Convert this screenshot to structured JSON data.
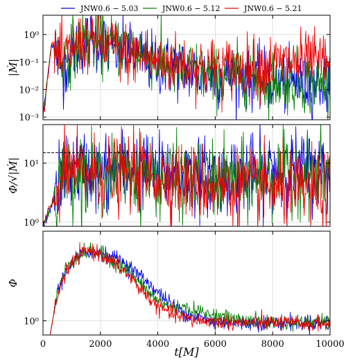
{
  "chart_data": [
    {
      "type": "line",
      "panel": "top",
      "ylabel": "|Ṁ|",
      "yscale": "log",
      "ylim": [
        0.0008,
        5
      ],
      "xlim": [
        0,
        10000
      ],
      "yticks": [
        {
          "v": 0.001,
          "label": "10⁻³"
        },
        {
          "v": 0.01,
          "label": "10⁻²"
        },
        {
          "v": 0.1,
          "label": "10⁻¹"
        },
        {
          "v": 1,
          "label": "10⁰"
        }
      ],
      "grid": true,
      "legend": "top",
      "series": [
        {
          "name": "JNW0.6 − 5.03",
          "color": "#0000ee",
          "x": [
            0,
            300,
            700,
            1000,
            1500,
            2000,
            2500,
            3000,
            3500,
            4000,
            5000,
            6000,
            7000,
            8000,
            9000,
            10000
          ],
          "y": [
            0.001,
            0.5,
            0.05,
            0.2,
            0.6,
            0.5,
            0.3,
            0.2,
            0.15,
            0.08,
            0.05,
            0.03,
            0.03,
            0.02,
            0.015,
            0.02
          ]
        },
        {
          "name": "JNW0.6 − 5.12",
          "color": "#008000",
          "x": [
            0,
            300,
            700,
            1000,
            1500,
            2000,
            2500,
            3000,
            3500,
            4000,
            5000,
            6000,
            7000,
            8000,
            9000,
            10000
          ],
          "y": [
            0.001,
            0.5,
            0.1,
            0.3,
            0.7,
            0.5,
            0.4,
            0.3,
            0.2,
            0.1,
            0.05,
            0.03,
            0.04,
            0.02,
            0.02,
            0.015
          ]
        },
        {
          "name": "JNW0.6 − 5.21",
          "color": "#ee0000",
          "x": [
            0,
            300,
            700,
            1000,
            1500,
            2000,
            2500,
            3000,
            3500,
            4000,
            5000,
            6000,
            7000,
            8000,
            9000,
            10000
          ],
          "y": [
            0.001,
            0.5,
            0.1,
            0.3,
            0.6,
            0.5,
            0.3,
            0.2,
            0.15,
            0.1,
            0.08,
            0.06,
            0.06,
            0.08,
            0.1,
            0.1
          ]
        }
      ]
    },
    {
      "type": "line",
      "panel": "middle",
      "ylabel": "Φ/√|Ṁ|",
      "yscale": "log",
      "ylim": [
        0.85,
        45
      ],
      "xlim": [
        0,
        10000
      ],
      "yticks": [
        {
          "v": 1,
          "label": "10⁰"
        },
        {
          "v": 10,
          "label": "10¹"
        }
      ],
      "reference_line": {
        "y": 15,
        "style": "dashed"
      },
      "grid": true,
      "series": [
        {
          "name": "JNW0.6 − 5.03",
          "color": "#0000ee",
          "x": [
            0,
            300,
            700,
            1000,
            2000,
            3000,
            4000,
            5000,
            6000,
            7000,
            8000,
            9000,
            10000
          ],
          "y": [
            0.85,
            2,
            8,
            8,
            7,
            8,
            7,
            6,
            6,
            6,
            8,
            8,
            7
          ]
        },
        {
          "name": "JNW0.6 − 5.12",
          "color": "#008000",
          "x": [
            0,
            300,
            700,
            1000,
            2000,
            3000,
            4000,
            5000,
            6000,
            7000,
            8000,
            9000,
            10000
          ],
          "y": [
            0.85,
            2,
            7,
            7,
            6,
            7,
            6,
            5,
            5,
            5,
            6,
            7,
            6
          ]
        },
        {
          "name": "JNW0.6 − 5.21",
          "color": "#ee0000",
          "x": [
            0,
            300,
            700,
            1000,
            2000,
            3000,
            4000,
            5000,
            6000,
            7000,
            8000,
            9000,
            10000
          ],
          "y": [
            0.85,
            2,
            7,
            7,
            6,
            7,
            6,
            5,
            4,
            4,
            3.5,
            3.5,
            3.2
          ]
        }
      ]
    },
    {
      "type": "line",
      "panel": "bottom",
      "ylabel": "Φ",
      "xlabel": "t[M]",
      "yscale": "log",
      "ylim": [
        0.5,
        80
      ],
      "xlim": [
        0,
        10000
      ],
      "xticks": [
        {
          "v": 0,
          "label": "0"
        },
        {
          "v": 2000,
          "label": "2000"
        },
        {
          "v": 4000,
          "label": "4000"
        },
        {
          "v": 6000,
          "label": "6000"
        },
        {
          "v": 8000,
          "label": "8000"
        },
        {
          "v": 10000,
          "label": "10000"
        }
      ],
      "yticks": [
        {
          "v": 1,
          "label": "10⁰"
        }
      ],
      "grid": true,
      "series": [
        {
          "name": "JNW0.6 − 5.03",
          "color": "#0000ee",
          "x": [
            250,
            500,
            800,
            1200,
            1600,
            2000,
            2500,
            3000,
            3500,
            4000,
            4500,
            5000,
            5500,
            6000,
            7000,
            8000,
            9000,
            10000
          ],
          "y": [
            0.5,
            4,
            12,
            22,
            30,
            28,
            22,
            14,
            8,
            4,
            2.2,
            1.4,
            1.1,
            0.95,
            0.9,
            0.92,
            0.9,
            0.9
          ]
        },
        {
          "name": "JNW0.6 − 5.12",
          "color": "#008000",
          "x": [
            250,
            500,
            800,
            1200,
            1600,
            2000,
            2500,
            3000,
            3500,
            4000,
            4500,
            5000,
            5500,
            6000,
            7000,
            8000,
            9000,
            10000
          ],
          "y": [
            0.5,
            4,
            13,
            24,
            30,
            27,
            18,
            11,
            5,
            2.6,
            1.9,
            1.8,
            1.5,
            1.3,
            1.0,
            0.95,
            0.92,
            0.92
          ]
        },
        {
          "name": "JNW0.6 − 5.21",
          "color": "#ee0000",
          "x": [
            250,
            500,
            800,
            1200,
            1600,
            2000,
            2500,
            3000,
            3500,
            4000,
            4500,
            5000,
            5500,
            6000,
            7000,
            8000,
            9000,
            10000
          ],
          "y": [
            0.5,
            3.5,
            11,
            22,
            32,
            26,
            16,
            9,
            4,
            2,
            1.4,
            1.1,
            1.0,
            0.95,
            0.9,
            0.9,
            0.88,
            0.88
          ]
        }
      ]
    }
  ]
}
